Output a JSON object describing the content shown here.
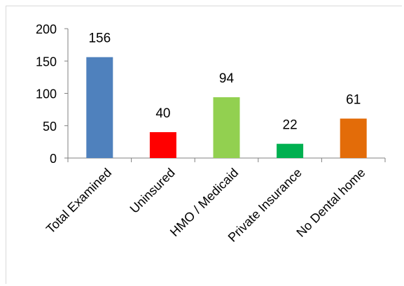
{
  "chart_data": {
    "type": "bar",
    "title": "",
    "xlabel": "",
    "ylabel": "",
    "categories": [
      "Total Examined",
      "Uninsured",
      "HMO / Medicaid",
      "Private Insurance",
      "No Dental home"
    ],
    "values": [
      156,
      40,
      94,
      22,
      61
    ],
    "data_labels": [
      "156",
      "40",
      "94",
      "22",
      "61"
    ],
    "colors": [
      "#4f81bd",
      "#ff0000",
      "#92d050",
      "#00b050",
      "#e36c09"
    ],
    "ylim": [
      0,
      200
    ],
    "yticks": [
      "0",
      "50",
      "100",
      "150",
      "200"
    ],
    "grid": false,
    "legend": "none"
  }
}
